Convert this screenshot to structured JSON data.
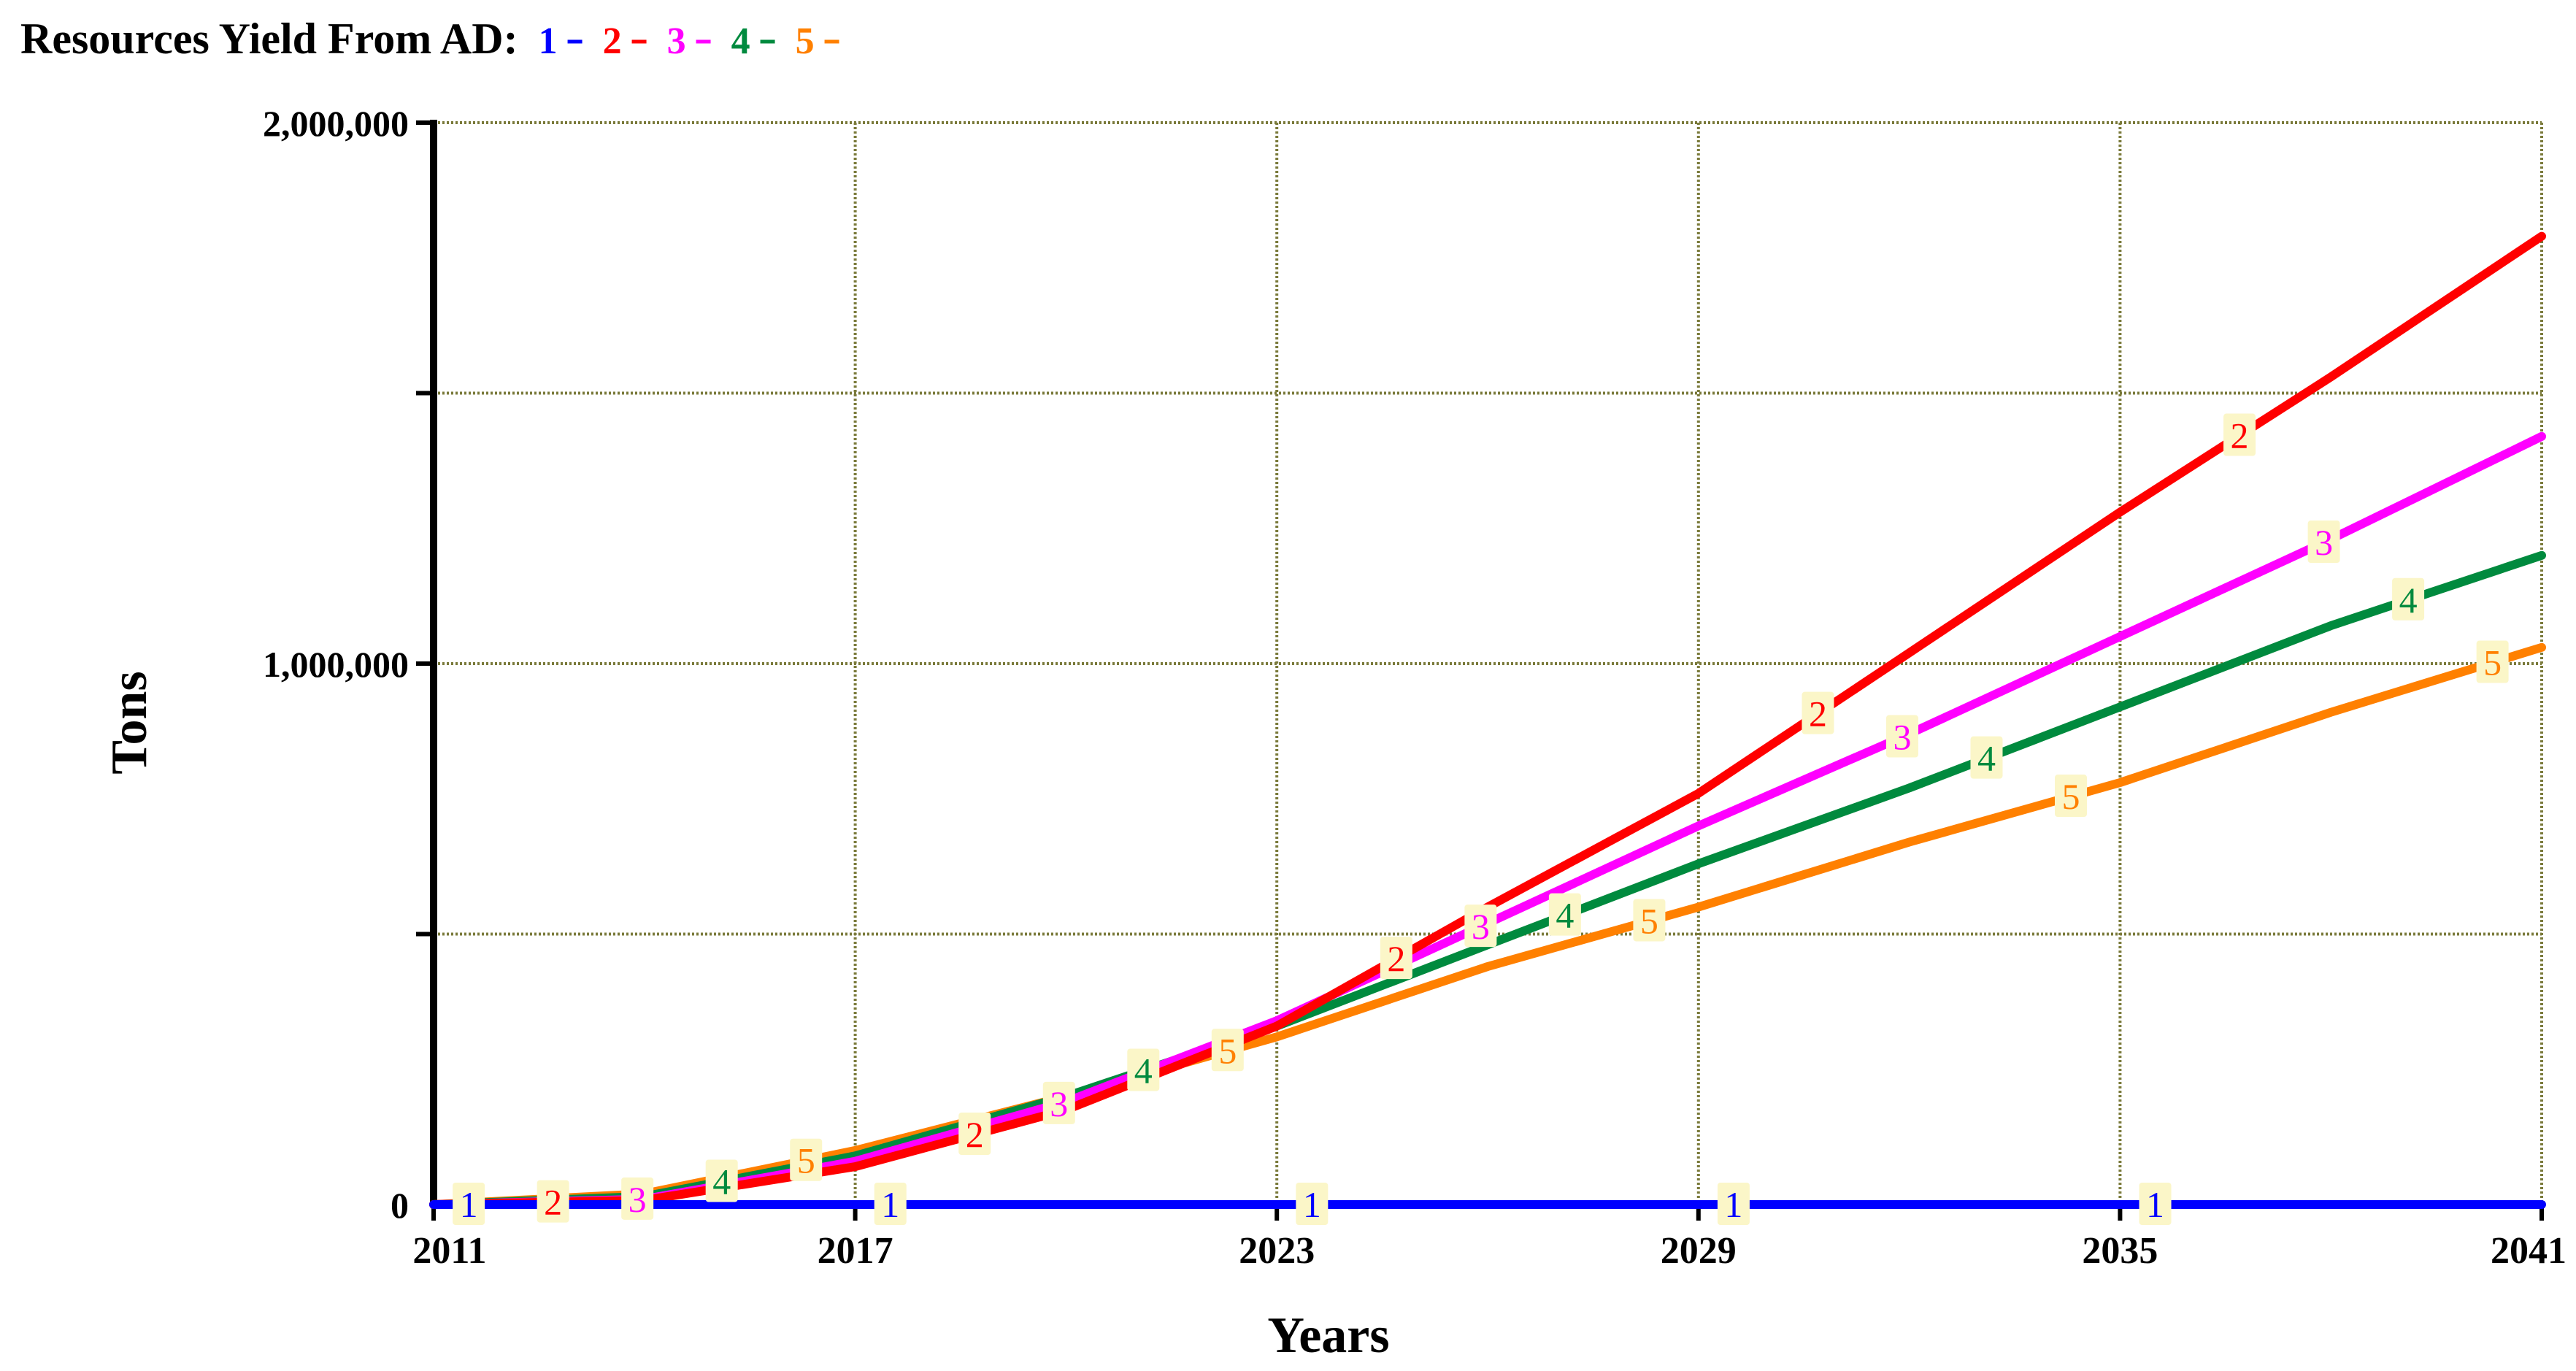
{
  "chart_data": {
    "type": "line",
    "title": "Resources Yield From AD:",
    "legend_position": "top-left",
    "xlabel": "Years",
    "ylabel": "Tons",
    "xlim": [
      2011,
      2041
    ],
    "ylim": [
      0,
      2000000
    ],
    "x_ticks": [
      "2011",
      "2017",
      "2023",
      "2029",
      "2035",
      "2041"
    ],
    "y_ticks": [
      "2,000,000",
      "1,000,000",
      "0"
    ],
    "grid": true,
    "x": [
      2011,
      2014,
      2017,
      2020,
      2023,
      2026,
      2029,
      2032,
      2035,
      2038,
      2041
    ],
    "series": [
      {
        "name": "1",
        "color": "#0000ff",
        "values": [
          0,
          0,
          0,
          0,
          0,
          0,
          0,
          0,
          0,
          0,
          0
        ]
      },
      {
        "name": "2",
        "color": "#ff0000",
        "values": [
          0,
          8000,
          70000,
          175000,
          330000,
          550000,
          760000,
          1020000,
          1280000,
          1530000,
          1790000
        ]
      },
      {
        "name": "3",
        "color": "#ff00ff",
        "values": [
          0,
          10000,
          80000,
          190000,
          340000,
          520000,
          700000,
          870000,
          1050000,
          1230000,
          1420000
        ]
      },
      {
        "name": "4",
        "color": "#008a3e",
        "values": [
          0,
          15000,
          90000,
          200000,
          330000,
          480000,
          630000,
          770000,
          920000,
          1070000,
          1200000
        ]
      },
      {
        "name": "5",
        "color": "#ff8000",
        "values": [
          0,
          20000,
          100000,
          200000,
          310000,
          440000,
          550000,
          670000,
          780000,
          910000,
          1030000
        ]
      }
    ],
    "markers": {
      "1": [
        2011.5,
        2017.5,
        2023.5,
        2029.5,
        2035.5
      ],
      "2": [
        2012.7,
        2018.7,
        2024.7,
        2030.7,
        2036.7
      ],
      "3": [
        2013.9,
        2019.9,
        2025.9,
        2031.9,
        2037.9
      ],
      "4": [
        2015.1,
        2021.1,
        2027.1,
        2033.1,
        2039.1
      ],
      "5": [
        2016.3,
        2022.3,
        2028.3,
        2034.3,
        2040.3
      ]
    }
  }
}
